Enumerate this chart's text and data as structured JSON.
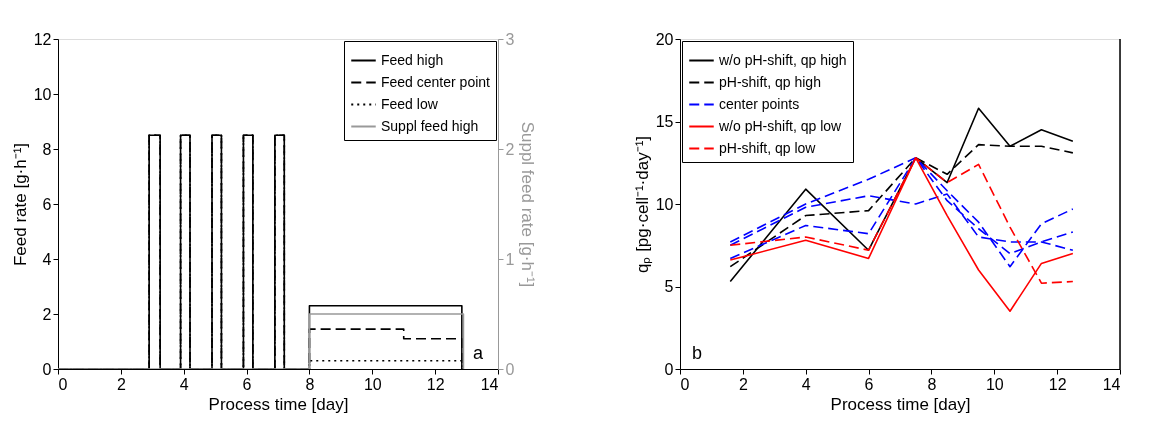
{
  "chart_data": [
    {
      "type": "step",
      "xlabel": "Process time [day]",
      "ylabel": "Feed rate [g·h⁻¹]",
      "y2label": "Suppl feed rate [g·h⁻¹]",
      "xlim": [
        0,
        14
      ],
      "xticks": [
        0,
        2,
        4,
        6,
        8,
        10,
        12,
        14
      ],
      "ylim": [
        0,
        12
      ],
      "yticks": [
        0,
        2,
        4,
        6,
        8,
        10,
        12
      ],
      "y2lim": [
        0,
        3
      ],
      "y2ticks": [
        0,
        1,
        2,
        3
      ],
      "legend": "top right",
      "grid": false,
      "annotations": [
        "a"
      ],
      "series": [
        {
          "name": "Feed high",
          "color": "#000000",
          "line_style": "solid",
          "x": [
            0,
            2.9,
            3.25,
            3.9,
            4.2,
            4.9,
            5.2,
            5.9,
            6.2,
            6.9,
            7.2,
            8,
            12.85
          ],
          "values": [
            0,
            8.5,
            0,
            8.5,
            0,
            8.5,
            0,
            8.5,
            0,
            8.5,
            0,
            2.3,
            0
          ]
        },
        {
          "name": "Feed center point",
          "color": "#000000",
          "line_style": "dashed",
          "x": [
            0,
            2.9,
            3.25,
            3.9,
            4.2,
            4.9,
            5.2,
            5.9,
            6.2,
            6.9,
            7.2,
            8,
            11,
            12.85
          ],
          "values": [
            0,
            8.5,
            0,
            8.5,
            0,
            8.5,
            0,
            8.5,
            0,
            8.5,
            0,
            1.45,
            1.1,
            0
          ]
        },
        {
          "name": "Feed low",
          "color": "#000000",
          "line_style": "dotted",
          "x": [
            0,
            2.9,
            3.25,
            3.9,
            4.2,
            4.9,
            5.2,
            5.9,
            6.2,
            6.9,
            7.2,
            8,
            12.85
          ],
          "values": [
            0,
            8.5,
            0,
            8.5,
            0,
            8.5,
            0,
            8.5,
            0,
            8.5,
            0,
            0.3,
            0
          ]
        },
        {
          "name": "Suppl feed high",
          "color": "#999999",
          "line_style": "solid",
          "axis": "y2",
          "x": [
            0,
            8,
            12.9
          ],
          "values": [
            0,
            0.5,
            0
          ]
        }
      ]
    },
    {
      "type": "line",
      "xlabel": "Process time [day]",
      "ylabel": "qₚ [pg·cell⁻¹·day⁻¹]",
      "xlim": [
        0,
        14
      ],
      "xticks": [
        0,
        2,
        4,
        6,
        8,
        10,
        12,
        14
      ],
      "ylim": [
        0,
        20
      ],
      "yticks": [
        0,
        5,
        10,
        15,
        20
      ],
      "legend": "top left",
      "grid": false,
      "annotations": [
        "b"
      ],
      "x": [
        1.6,
        4,
        6,
        7.5,
        8.5,
        9.5,
        10.5,
        11.5,
        12.5
      ],
      "series": [
        {
          "name": "w/o pH-shift, qp high",
          "color": "#000000",
          "line_style": "solid",
          "values": [
            5.3,
            10.9,
            7.2,
            12.8,
            11.3,
            15.8,
            13.5,
            14.5,
            13.8
          ]
        },
        {
          "name": "pH-shift, qp high",
          "color": "#000000",
          "line_style": "dashed",
          "values": [
            6.2,
            9.3,
            9.6,
            12.8,
            11.8,
            13.6,
            13.5,
            13.5,
            13.1
          ]
        },
        {
          "name": "center points",
          "color": "#0000ff",
          "line_style": "dashed",
          "values": [
            7.7,
            10.0,
            11.5,
            12.8,
            10.8,
            8.9,
            6.2,
            8.8,
            9.7
          ]
        },
        {
          "color": "#0000ff",
          "line_style": "dashed",
          "values": [
            7.5,
            9.8,
            10.5,
            10.0,
            10.6,
            8.0,
            7.7,
            7.7,
            7.2
          ]
        },
        {
          "color": "#0000ff",
          "line_style": "dashed",
          "values": [
            6.7,
            8.7,
            8.2,
            12.8,
            10.2,
            8.5,
            7.0,
            7.7,
            8.3
          ]
        },
        {
          "name": "w/o pH-shift, qp low",
          "color": "#ff0000",
          "line_style": "solid",
          "values": [
            6.6,
            7.8,
            6.7,
            12.8,
            9.3,
            6.0,
            3.5,
            6.4,
            7.0
          ]
        },
        {
          "name": "pH-shift, qp low",
          "color": "#ff0000",
          "line_style": "dashed",
          "values": [
            7.5,
            8.0,
            7.2,
            12.8,
            11.3,
            12.4,
            8.6,
            5.2,
            5.3
          ]
        }
      ]
    }
  ]
}
